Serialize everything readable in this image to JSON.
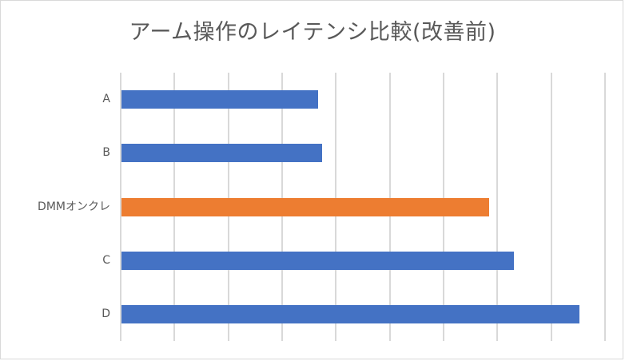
{
  "chart_data": {
    "type": "bar",
    "orientation": "horizontal",
    "title": "アーム操作のレイテンシ比較(改善前)",
    "xlabel": "",
    "ylabel": "",
    "categories": [
      "A",
      "B",
      "DMMオンクレ",
      "C",
      "D"
    ],
    "values": [
      3.65,
      3.73,
      6.83,
      7.29,
      8.51
    ],
    "value_units": "gridline intervals (no tick labels shown)",
    "xlim": [
      0,
      9
    ],
    "gridlines": 10,
    "grid": true,
    "legend": null,
    "colors": [
      "#4472c4",
      "#4472c4",
      "#ed7d31",
      "#4472c4",
      "#4472c4"
    ],
    "highlighted_category": "DMMオンクレ"
  },
  "colors": {
    "primary": "#4472c4",
    "highlight": "#ed7d31",
    "grid": "#d9d9d9",
    "text": "#595959"
  }
}
